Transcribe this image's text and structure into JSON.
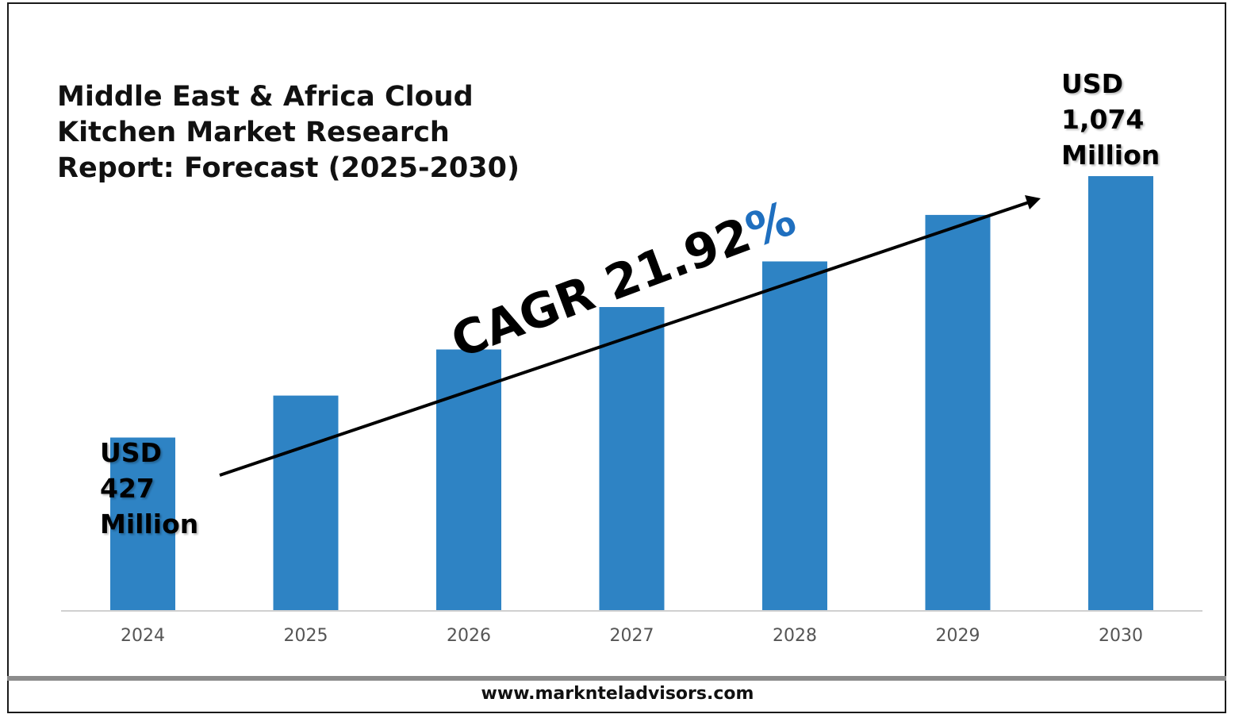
{
  "title_lines": [
    "Middle East & Africa Cloud",
    "Kitchen Market Research",
    "Report: Forecast (2025-2030)"
  ],
  "callouts": {
    "start": [
      "USD",
      "427",
      "Million"
    ],
    "end": [
      "USD",
      "1,074",
      "Million"
    ]
  },
  "cagr": {
    "text": "CAGR 21.92",
    "symbol": "%"
  },
  "website": "www.marknteladvisors.com",
  "colors": {
    "bar": "#2e83c4",
    "percent": "#1f6fbf",
    "footer_bar": "#8c8c8c"
  },
  "chart_data": {
    "type": "bar",
    "categories": [
      "2024",
      "2025",
      "2026",
      "2027",
      "2028",
      "2029",
      "2030"
    ],
    "values": [
      427,
      531,
      645,
      750,
      863,
      978,
      1074
    ],
    "ylim": [
      0,
      1510
    ],
    "grid": false,
    "legend": "none"
  }
}
